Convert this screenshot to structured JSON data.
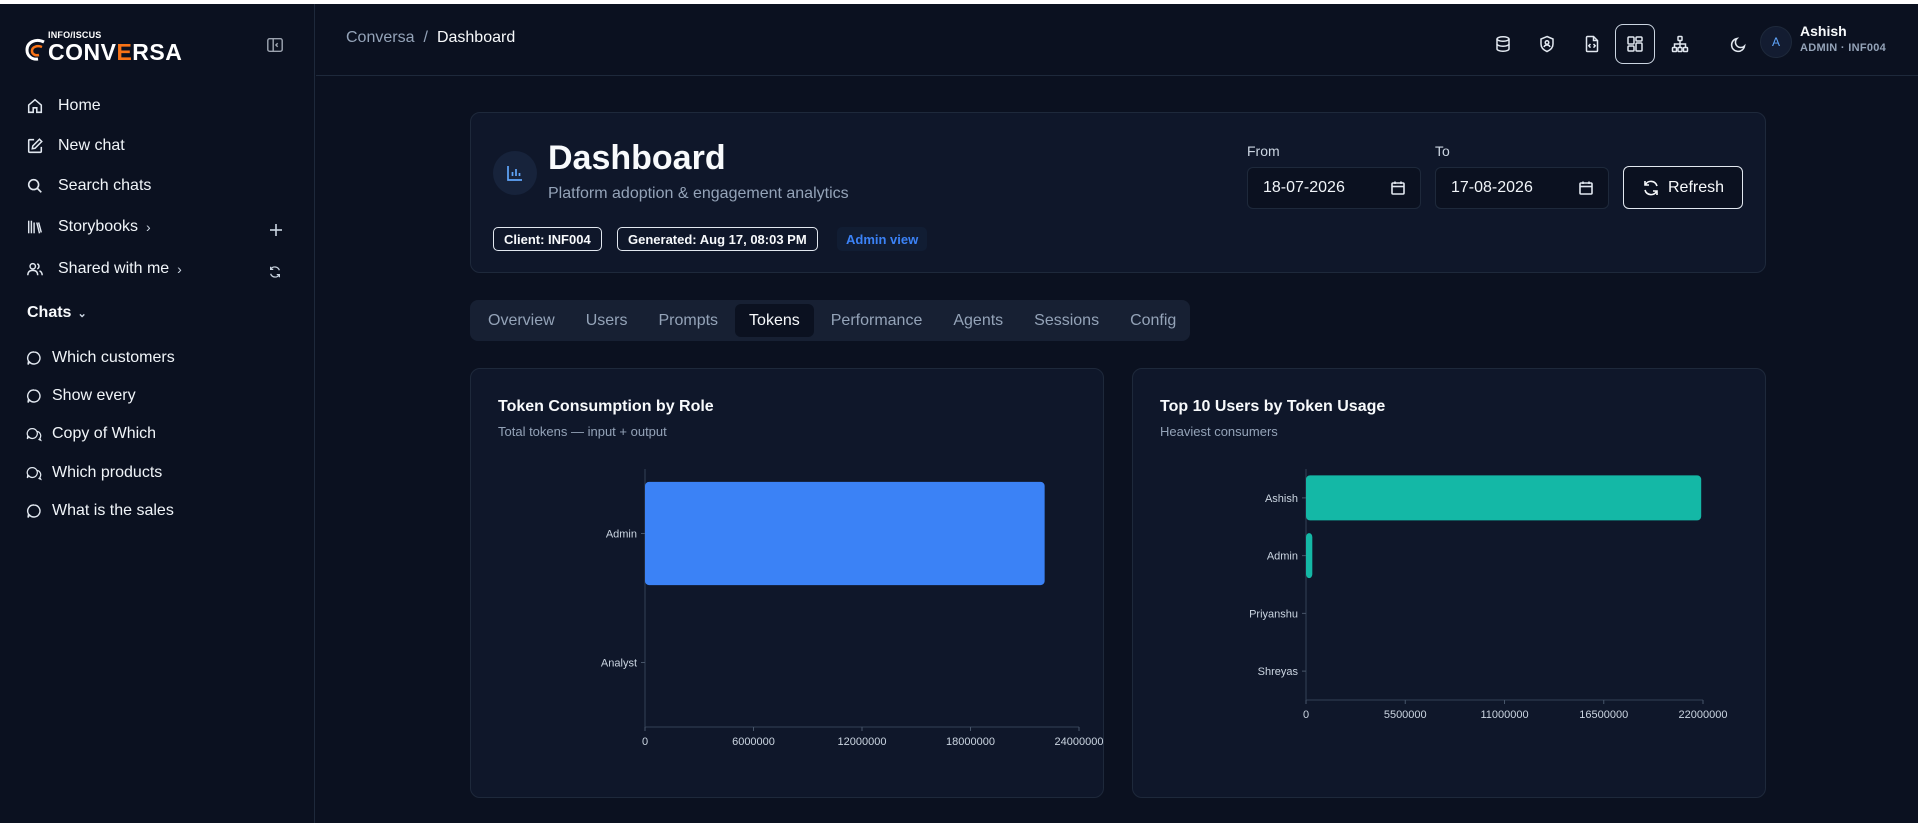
{
  "app": {
    "logo_small": "INFO/ISCUS",
    "logo_main_pre": "CONV",
    "logo_main_accent": "E",
    "logo_main_post": "RSA",
    "accent_color": "#f97316"
  },
  "sidebar": {
    "nav": [
      {
        "label": "Home",
        "icon": "home-icon"
      },
      {
        "label": "New chat",
        "icon": "edit-icon"
      },
      {
        "label": "Search chats",
        "icon": "search-icon"
      },
      {
        "label": "Storybooks",
        "icon": "library-icon"
      },
      {
        "label": "Shared with me",
        "icon": "users-icon"
      }
    ],
    "chats_label": "Chats",
    "chats": [
      {
        "label": "Which customers"
      },
      {
        "label": "Show every"
      },
      {
        "label": "Copy of Which"
      },
      {
        "label": "Which products"
      },
      {
        "label": "What is the sales"
      }
    ]
  },
  "header": {
    "breadcrumb": [
      "Conversa",
      "Dashboard"
    ],
    "icons": [
      "database-icon",
      "shield-user-icon",
      "file-code-icon",
      "dashboard-icon",
      "org-chart-icon",
      "moon-icon"
    ],
    "user": {
      "initial": "A",
      "name": "Ashish",
      "role": "ADMIN · INF004"
    }
  },
  "dashboard": {
    "title": "Dashboard",
    "subtitle": "Platform adoption & engagement analytics",
    "badges": {
      "client": "Client: INF004",
      "generated": "Generated: Aug 17, 08:03 PM",
      "view": "Admin view"
    },
    "from_label": "From",
    "from_value": "18-07-2026",
    "to_label": "To",
    "to_value": "17-08-2026",
    "refresh_label": "Refresh"
  },
  "tabs": [
    "Overview",
    "Users",
    "Prompts",
    "Tokens",
    "Performance",
    "Agents",
    "Sessions",
    "Config"
  ],
  "active_tab": "Tokens",
  "chart_data": [
    {
      "type": "bar",
      "orientation": "horizontal",
      "title": "Token Consumption by Role",
      "subtitle": "Total tokens — input + output",
      "categories": [
        "Admin",
        "Analyst"
      ],
      "values": [
        22100000,
        0
      ],
      "xlim": [
        0,
        24000000
      ],
      "xticks": [
        0,
        6000000,
        12000000,
        18000000,
        24000000
      ],
      "xtick_labels": [
        "0",
        "6000000",
        "12000000",
        "18000000",
        "24000000"
      ],
      "color": "#3b82f6",
      "grid": false
    },
    {
      "type": "bar",
      "orientation": "horizontal",
      "title": "Top 10 Users by Token Usage",
      "subtitle": "Heaviest consumers",
      "categories": [
        "Ashish",
        "Admin",
        "Priyanshu",
        "Shreyas"
      ],
      "values": [
        21900000,
        350000,
        0,
        0
      ],
      "xlim": [
        0,
        22000000
      ],
      "xticks": [
        0,
        5500000,
        11000000,
        16500000,
        22000000
      ],
      "xtick_labels": [
        "0",
        "5500000",
        "11000000",
        "16500000",
        "22000000"
      ],
      "color": "#14b8a6",
      "grid": false
    }
  ]
}
